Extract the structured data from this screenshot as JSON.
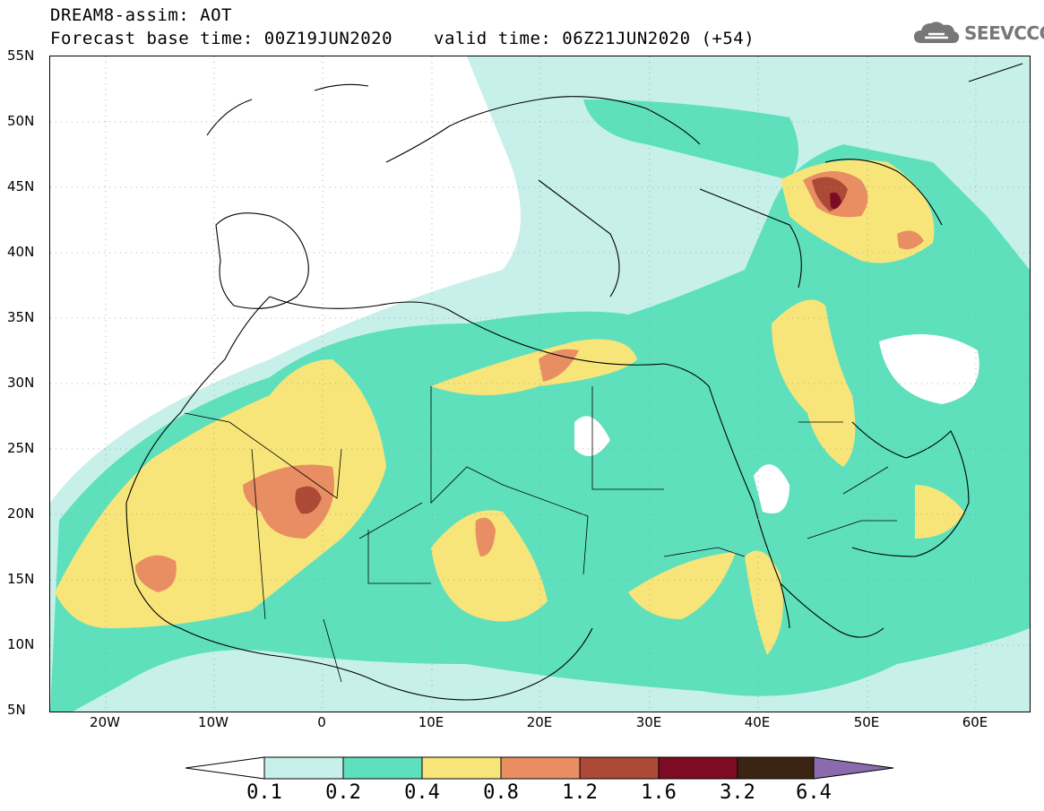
{
  "header": {
    "title": "DREAM8-assim: AOT",
    "base_time": "Forecast base time: 00Z19JUN2020",
    "valid_time": "valid time: 06Z21JUN2020 (+54)"
  },
  "logo": {
    "text": "SEEVCCC",
    "icon": "cloud-icon",
    "color": "#777777"
  },
  "map": {
    "lat_ticks": [
      "55N",
      "50N",
      "45N",
      "40N",
      "35N",
      "30N",
      "25N",
      "20N",
      "15N",
      "10N",
      "5N"
    ],
    "lon_ticks": [
      "20W",
      "10W",
      "0",
      "10E",
      "20E",
      "30E",
      "40E",
      "50E",
      "60E"
    ],
    "extent": {
      "lon": [
        -25,
        65
      ],
      "lat": [
        5,
        55
      ]
    }
  },
  "colorbar": {
    "labels": [
      "0.1",
      "0.2",
      "0.4",
      "0.8",
      "1.2",
      "1.6",
      "3.2",
      "6.4"
    ],
    "colors": [
      "#c7f0ea",
      "#5ee0bd",
      "#f7e57a",
      "#e88e62",
      "#ad4937",
      "#7d0b23",
      "#3b2412",
      "#8a6cae"
    ]
  }
}
